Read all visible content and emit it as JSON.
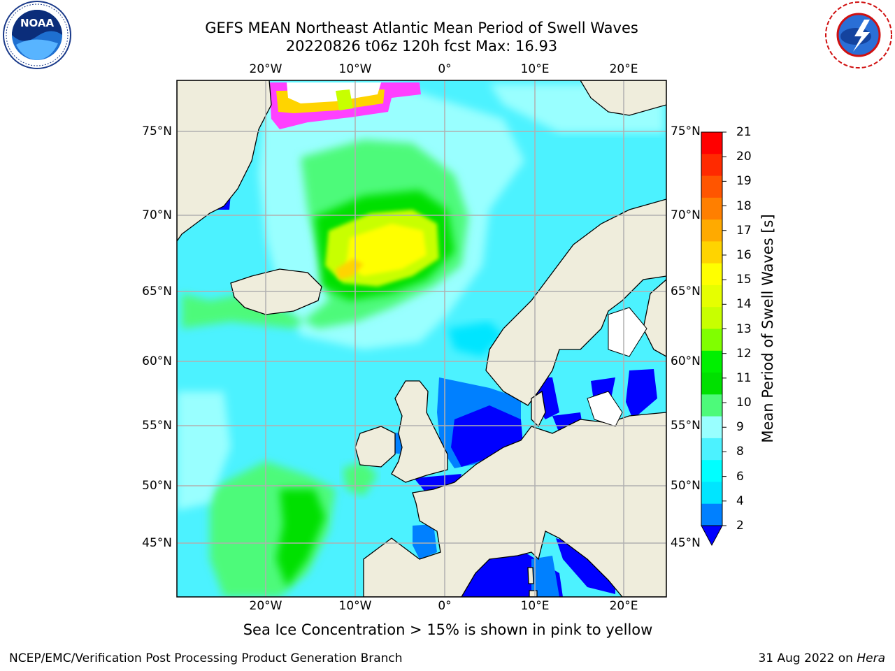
{
  "header": {
    "title_line1": "GEFS MEAN Northeast Atlantic Mean Period of Swell Waves",
    "title_line2": "20220826 t06z 120h fcst   Max: 16.93"
  },
  "logos": {
    "left": "NOAA",
    "right": "NATIONAL WEATHER SERVICE"
  },
  "axes": {
    "top_lon_labels": [
      "20°W",
      "10°W",
      "0°",
      "10°E",
      "20°E"
    ],
    "bottom_lon_labels": [
      "20°W",
      "10°W",
      "0°",
      "10°E",
      "20°E"
    ],
    "left_lat_labels": [
      "75°N",
      "70°N",
      "65°N",
      "60°N",
      "55°N",
      "50°N",
      "45°N"
    ],
    "right_lat_labels": [
      "75°N",
      "70°N",
      "65°N",
      "60°N",
      "55°N",
      "50°N",
      "45°N"
    ]
  },
  "colorbar": {
    "title": "Mean Period of Swell Waves [s]",
    "ticks": [
      "21",
      "20",
      "19",
      "18",
      "17",
      "16",
      "15",
      "14",
      "13",
      "12",
      "11",
      "10",
      "9",
      "8",
      "6",
      "4",
      "2"
    ],
    "colors_top_to_bottom": [
      "#ff0000",
      "#ff2a00",
      "#ff5500",
      "#ff7f00",
      "#ffaa00",
      "#ffd400",
      "#ffff00",
      "#e6ff00",
      "#c8ff00",
      "#80ff00",
      "#00f000",
      "#00e000",
      "#4dfa7a",
      "#99ffff",
      "#4cf2ff",
      "#00ffff",
      "#00e5ff",
      "#0080ff"
    ],
    "extend_color": "#0000ff"
  },
  "footnote": "Sea Ice Concentration > 15% is shown in pink to yellow",
  "footer": {
    "left": "NCEP/EMC/Verification Post Processing Product Generation Branch",
    "right_prefix": "31 Aug 2022 on ",
    "right_machine": "Hera"
  },
  "colors": {
    "ocean_base": "#4cf2ff",
    "land": "#efeddc",
    "grid": "#b0b0b0"
  }
}
